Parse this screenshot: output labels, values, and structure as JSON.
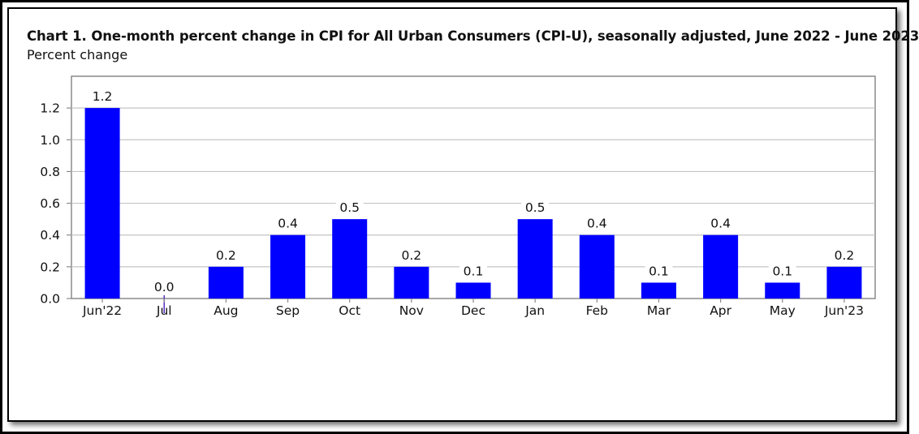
{
  "chart_data": {
    "type": "bar",
    "title": "Chart 1. One-month percent change in CPI for All Urban Consumers (CPI-U), seasonally adjusted, June 2022 - June 2023",
    "subtitle": "Percent change",
    "categories": [
      "Jun'22",
      "Jul",
      "Aug",
      "Sep",
      "Oct",
      "Nov",
      "Dec",
      "Jan",
      "Feb",
      "Mar",
      "Apr",
      "May",
      "Jun'23"
    ],
    "values": [
      1.2,
      0.0,
      0.2,
      0.4,
      0.5,
      0.2,
      0.1,
      0.5,
      0.4,
      0.1,
      0.4,
      0.1,
      0.2
    ],
    "data_labels": [
      "1.2",
      "0.0",
      "0.2",
      "0.4",
      "0.5",
      "0.2",
      "0.1",
      "0.5",
      "0.4",
      "0.1",
      "0.4",
      "0.1",
      "0.2"
    ],
    "yticks": [
      "0.0",
      "0.2",
      "0.4",
      "0.6",
      "0.8",
      "1.0",
      "1.2"
    ],
    "ylim": [
      0,
      1.4
    ],
    "grid": true,
    "legend": "none",
    "bar_color": "#0000ff",
    "zero_line_color": "#5b2bbf"
  }
}
